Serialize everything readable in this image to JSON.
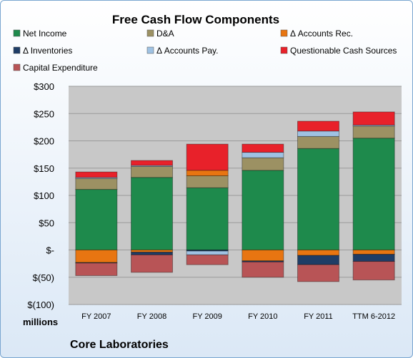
{
  "chart_data": {
    "type": "bar",
    "stacked": true,
    "title": "Free Cash Flow Components",
    "subtitle": "",
    "ylabel": "",
    "xlabel": "",
    "unit_label": "millions",
    "footer_label": "Core Laboratories",
    "categories": [
      "FY 2007",
      "FY 2008",
      "FY 2009",
      "FY 2010",
      "FY 2011",
      "TTM 6-2012"
    ],
    "yticks": [
      {
        "value": 300,
        "label": "$300"
      },
      {
        "value": 250,
        "label": "$250"
      },
      {
        "value": 200,
        "label": "$200"
      },
      {
        "value": 150,
        "label": "$150"
      },
      {
        "value": 100,
        "label": "$100"
      },
      {
        "value": 50,
        "label": "$50"
      },
      {
        "value": 0,
        "label": "$-"
      },
      {
        "value": -50,
        "label": "$(50)"
      },
      {
        "value": -100,
        "label": "$(100)"
      }
    ],
    "ylim": [
      -100,
      300
    ],
    "grid": true,
    "legend_position": "top",
    "series": [
      {
        "name": "Net Income",
        "color": "#1e8a4c",
        "values": [
          111,
          133,
          114,
          146,
          186,
          205
        ]
      },
      {
        "name": "D&A",
        "color": "#9c9163",
        "values": [
          20,
          20,
          22,
          23,
          22,
          22
        ]
      },
      {
        "name": "Δ Accounts Rec.",
        "color": "#e87511",
        "values": [
          -23,
          -4,
          10,
          -20,
          -10,
          -8
        ]
      },
      {
        "name": "Δ Inventories",
        "color": "#1f3d66",
        "values": [
          -1,
          -5,
          -2,
          -2,
          -17,
          -13
        ]
      },
      {
        "name": "Δ Accounts Pay.",
        "color": "#9fc2e3",
        "values": [
          2,
          2,
          -7,
          10,
          10,
          2
        ]
      },
      {
        "name": "Questionable Cash Sources",
        "color": "#e8212a",
        "values": [
          10,
          9,
          48,
          15,
          18,
          24
        ]
      },
      {
        "name": "Capital Expenditure",
        "color": "#b85456",
        "values": [
          -23,
          -32,
          -18,
          -28,
          -31,
          -34
        ]
      }
    ]
  }
}
